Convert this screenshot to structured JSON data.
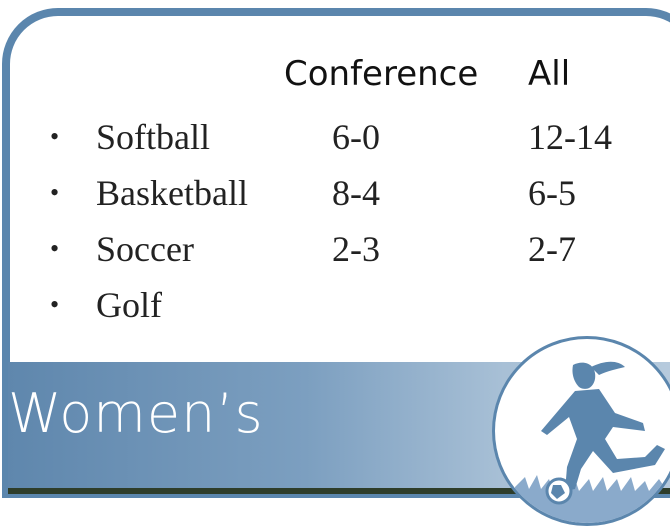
{
  "headers": {
    "conference": "Conference",
    "all": "All"
  },
  "sports": [
    {
      "name": "Softball",
      "conference": "6-0",
      "all": "12-14"
    },
    {
      "name": "Basketball",
      "conference": "8-4",
      "all": "6-5"
    },
    {
      "name": "Soccer",
      "conference": "2-3",
      "all": "2-7"
    },
    {
      "name": "Golf",
      "conference": "",
      "all": ""
    }
  ],
  "banner": {
    "title": "Women’s"
  },
  "icons": {
    "bullet": "•",
    "logo": "soccer-player-icon"
  },
  "colors": {
    "frame": "#5b86ad",
    "banner_dark": "#5f87ad",
    "banner_light": "#b6cadd",
    "text": "#222222"
  }
}
